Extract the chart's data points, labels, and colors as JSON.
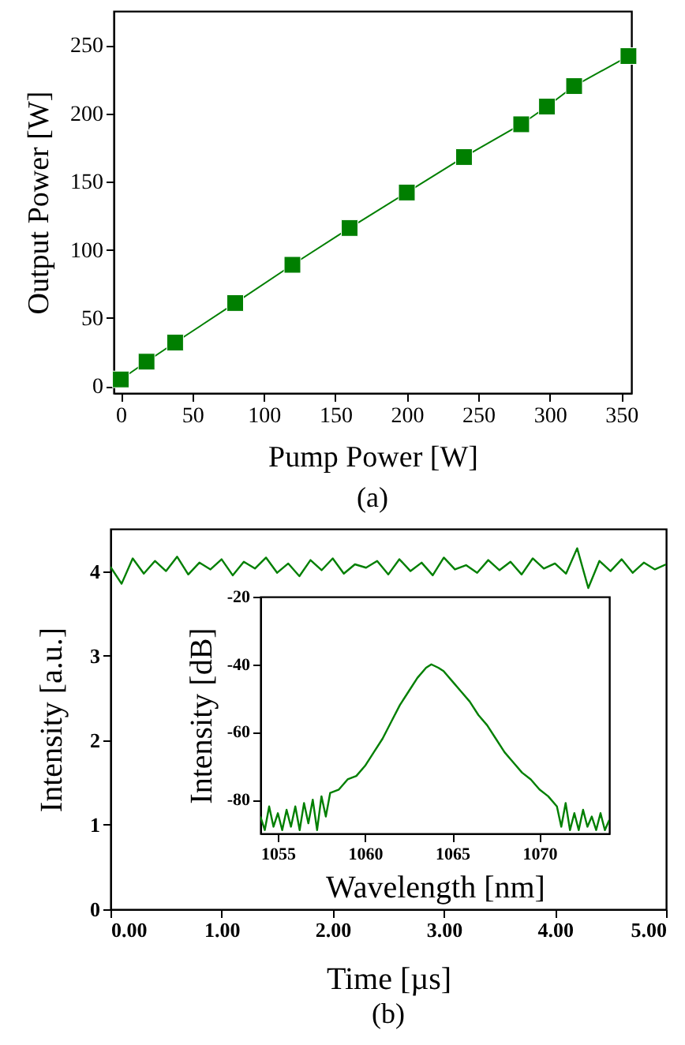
{
  "chart_data": [
    {
      "type": "line",
      "xlabel": "Pump Power [W]",
      "ylabel": "Output Power [W]",
      "annotations": [
        "(a)"
      ],
      "marker": "square",
      "xlim": [
        -5,
        357
      ],
      "ylim": [
        -5,
        275
      ],
      "xticks": [
        0,
        50,
        100,
        150,
        200,
        250,
        300,
        350
      ],
      "yticks": [
        0,
        50,
        100,
        150,
        200,
        250
      ],
      "x": [
        0,
        18,
        38,
        80,
        120,
        160,
        200,
        240,
        280,
        298,
        317,
        355
      ],
      "series": [
        {
          "color": "#007f00",
          "values": [
            5,
            18,
            32,
            61,
            89,
            116,
            142,
            168,
            192,
            205,
            220,
            242
          ]
        }
      ]
    },
    {
      "type": "line",
      "xlabel": "Time [µs]",
      "ylabel": "Intensity [a.u.]",
      "annotations": [
        "(b)"
      ],
      "xlim": [
        0,
        5
      ],
      "ylim": [
        0,
        4.5
      ],
      "xticks": [
        {
          "value": 0,
          "label": "0.00"
        },
        {
          "value": 1,
          "label": "1.00"
        },
        {
          "value": 2,
          "label": "2.00"
        },
        {
          "value": 3,
          "label": "3.00"
        },
        {
          "value": 4,
          "label": "4.00"
        },
        {
          "value": 5,
          "label": "5.00"
        }
      ],
      "yticks": [
        0,
        1,
        2,
        3,
        4
      ],
      "x": [
        0,
        0.1,
        0.2,
        0.3,
        0.4,
        0.5,
        0.6,
        0.7,
        0.8,
        0.9,
        1,
        1.1,
        1.2,
        1.3,
        1.4,
        1.5,
        1.6,
        1.7,
        1.8,
        1.9,
        2,
        2.1,
        2.2,
        2.3,
        2.4,
        2.5,
        2.6,
        2.7,
        2.8,
        2.9,
        3,
        3.1,
        3.2,
        3.3,
        3.4,
        3.5,
        3.6,
        3.7,
        3.8,
        3.9,
        4,
        4.1,
        4.2,
        4.3,
        4.4,
        4.5,
        4.6,
        4.7,
        4.8,
        4.9,
        5
      ],
      "series": [
        {
          "color": "#007f00",
          "values": [
            4.05,
            3.85,
            4.15,
            3.97,
            4.12,
            4.0,
            4.17,
            3.96,
            4.1,
            4.02,
            4.14,
            3.95,
            4.11,
            4.03,
            4.16,
            3.98,
            4.09,
            3.94,
            4.13,
            4.01,
            4.15,
            3.97,
            4.08,
            4.04,
            4.12,
            3.96,
            4.14,
            4.0,
            4.1,
            3.95,
            4.16,
            4.02,
            4.07,
            3.98,
            4.13,
            4.01,
            4.11,
            3.96,
            4.15,
            4.03,
            4.09,
            3.97,
            4.27,
            3.8,
            4.12,
            4.0,
            4.14,
            3.98,
            4.1,
            4.02,
            4.08
          ]
        }
      ]
    },
    {
      "type": "line",
      "xlabel": "Wavelength [nm]",
      "ylabel": "Intensity [dB]",
      "xlim": [
        1054,
        1074
      ],
      "ylim": [
        -90,
        -20
      ],
      "xticks": [
        1055,
        1060,
        1065,
        1070
      ],
      "yticks": [
        -20,
        -40,
        -60,
        -80
      ],
      "x": [
        1054,
        1054.25,
        1054.5,
        1054.75,
        1055,
        1055.25,
        1055.5,
        1055.75,
        1056,
        1056.25,
        1056.5,
        1056.75,
        1057,
        1057.25,
        1057.5,
        1057.75,
        1058,
        1058.5,
        1059,
        1059.5,
        1060,
        1060.5,
        1061,
        1061.5,
        1062,
        1062.5,
        1063,
        1063.5,
        1063.8,
        1064.2,
        1064.5,
        1065,
        1065.5,
        1066,
        1066.5,
        1067,
        1067.5,
        1068,
        1068.5,
        1069,
        1069.5,
        1070,
        1070.5,
        1071,
        1071.25,
        1071.5,
        1071.75,
        1072,
        1072.25,
        1072.5,
        1072.75,
        1073,
        1073.25,
        1073.5,
        1073.75,
        1074
      ],
      "series": [
        {
          "color": "#007f00",
          "values": [
            -85,
            -89,
            -82,
            -88,
            -84,
            -89,
            -83,
            -88,
            -82,
            -89,
            -81,
            -87,
            -80,
            -89,
            -79,
            -85,
            -78,
            -77,
            -74,
            -73,
            -70,
            -66,
            -62,
            -57,
            -52,
            -48,
            -44,
            -41,
            -40,
            -41,
            -42,
            -45,
            -48,
            -51,
            -55,
            -58,
            -62,
            -66,
            -69,
            -72,
            -74,
            -77,
            -79,
            -82,
            -88,
            -81,
            -89,
            -84,
            -89,
            -83,
            -88,
            -85,
            -89,
            -84,
            -89,
            -86
          ]
        }
      ]
    }
  ]
}
